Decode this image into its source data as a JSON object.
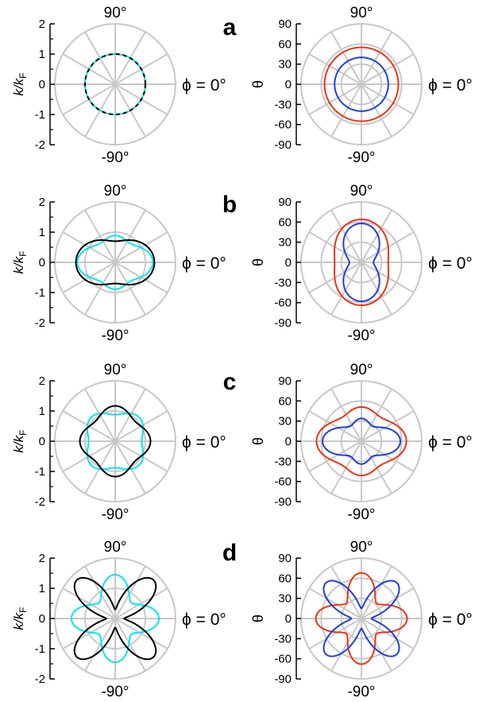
{
  "colors": {
    "grid": "#c8c8c8",
    "k_primary": "#000000",
    "k_secondary": "#00e5ee",
    "theta_outer": "#ee3311",
    "theta_inner": "#1f3fdd"
  },
  "labels": {
    "phi_zero": "ϕ = 0°",
    "top_angle": "90°",
    "bottom_angle": "-90°",
    "k_axis_title": "k/k",
    "k_axis_sub": "F",
    "theta_axis_title": "θ"
  },
  "k_ticks": [
    "2",
    "1",
    "0",
    "-1",
    "-2"
  ],
  "theta_ticks": [
    "90",
    "60",
    "30",
    "0",
    "-30",
    "-60",
    "-90"
  ],
  "chart_data": [
    {
      "panel": "a",
      "plot": "k",
      "type": "polar-line",
      "r_axis": {
        "label": "k/kF",
        "range": [
          -2,
          2
        ]
      },
      "angle_unit": "deg (ϕ)",
      "series": [
        {
          "key": "k_secondary",
          "style": "solid",
          "model": {
            "base": 1.0,
            "amp2": 0,
            "phase2": 0,
            "amp4": 0,
            "phase4": 0
          }
        },
        {
          "key": "k_primary",
          "style": "dashed",
          "model": {
            "base": 1.0,
            "amp2": 0,
            "phase2": 0,
            "amp4": 0,
            "phase4": 0
          }
        }
      ]
    },
    {
      "panel": "a",
      "plot": "theta",
      "type": "polar-line",
      "r_axis": {
        "label": "θ",
        "range": [
          -90,
          90
        ]
      },
      "angle_unit": "deg (ϕ)",
      "series": [
        {
          "key": "theta_outer",
          "style": "solid",
          "model": {
            "base": 55,
            "amp2": 0,
            "phase2": 0,
            "amp4": 0,
            "phase4": 0
          }
        },
        {
          "key": "theta_inner",
          "style": "solid",
          "model": {
            "base": 40,
            "amp2": 0,
            "phase2": 0,
            "amp4": 0,
            "phase4": 0
          }
        }
      ]
    },
    {
      "panel": "b",
      "plot": "k",
      "type": "polar-line",
      "r_axis": {
        "label": "k/kF",
        "range": [
          -2,
          2
        ]
      },
      "angle_unit": "deg (ϕ)",
      "series": [
        {
          "key": "k_secondary",
          "style": "solid",
          "model": {
            "base": 0.95,
            "amp2": 0.18,
            "phase2": 0,
            "amp4": 0.12,
            "phase4": 0
          }
        },
        {
          "key": "k_primary",
          "style": "solid",
          "model": {
            "base": 1.0,
            "amp2": 0.3,
            "phase2": 0,
            "amp4": 0,
            "phase4": 0
          }
        }
      ]
    },
    {
      "panel": "b",
      "plot": "theta",
      "type": "polar-line",
      "r_axis": {
        "label": "θ",
        "range": [
          -90,
          90
        ]
      },
      "angle_unit": "deg (ϕ)",
      "series": [
        {
          "key": "theta_outer",
          "style": "solid",
          "model": {
            "base": 52,
            "amp2": -12,
            "phase2": 0,
            "amp4": 0,
            "phase4": 0
          }
        },
        {
          "key": "theta_inner",
          "style": "solid",
          "model": {
            "base": 38,
            "amp2": -20,
            "phase2": 0,
            "amp4": 0,
            "phase4": 0
          }
        }
      ]
    },
    {
      "panel": "c",
      "plot": "k",
      "type": "polar-line",
      "r_axis": {
        "label": "k/kF",
        "range": [
          -2,
          2
        ]
      },
      "angle_unit": "deg (ϕ)",
      "series": [
        {
          "key": "k_secondary",
          "style": "solid",
          "model": {
            "base": 1.0,
            "amp2": 0,
            "phase2": 0,
            "amp4": -0.12,
            "phase4": 0
          }
        },
        {
          "key": "k_primary",
          "style": "solid",
          "model": {
            "base": 1.05,
            "amp2": 0,
            "phase2": 0,
            "amp4": 0.12,
            "phase4": 0
          }
        }
      ]
    },
    {
      "panel": "c",
      "plot": "theta",
      "type": "polar-line",
      "r_axis": {
        "label": "θ",
        "range": [
          -90,
          90
        ]
      },
      "angle_unit": "deg (ϕ)",
      "series": [
        {
          "key": "theta_outer",
          "style": "solid",
          "model": {
            "base": 53,
            "amp2": 8,
            "phase2": 0,
            "amp4": 6,
            "phase4": 0
          }
        },
        {
          "key": "theta_inner",
          "style": "solid",
          "model": {
            "base": 38,
            "amp2": 12,
            "phase2": 0,
            "amp4": 8,
            "phase4": 0
          }
        }
      ]
    },
    {
      "panel": "d",
      "plot": "k",
      "type": "polar-line",
      "r_axis": {
        "label": "k/kF",
        "range": [
          -2,
          2
        ]
      },
      "angle_unit": "deg (ϕ)",
      "series": [
        {
          "key": "k_secondary",
          "style": "solid",
          "model": {
            "base": 1.1,
            "amp2": 0,
            "phase2": 0,
            "amp4": 0.35,
            "phase4": 0
          }
        },
        {
          "key": "k_primary",
          "style": "solid",
          "model": {
            "base": 1.05,
            "amp2": 0,
            "phase2": 0,
            "amp4": -0.75,
            "phase4": 0
          }
        }
      ]
    },
    {
      "panel": "d",
      "plot": "theta",
      "type": "polar-line",
      "r_axis": {
        "label": "θ",
        "range": [
          -90,
          90
        ]
      },
      "angle_unit": "deg (ϕ)",
      "series": [
        {
          "key": "theta_outer",
          "style": "solid",
          "model": {
            "base": 50,
            "amp2": 0,
            "phase2": 0,
            "amp4": 18,
            "phase4": 0
          }
        },
        {
          "key": "theta_inner",
          "style": "solid",
          "model": {
            "base": 45,
            "amp2": 0,
            "phase2": 0,
            "amp4": -30,
            "phase4": 0
          }
        }
      ]
    }
  ]
}
